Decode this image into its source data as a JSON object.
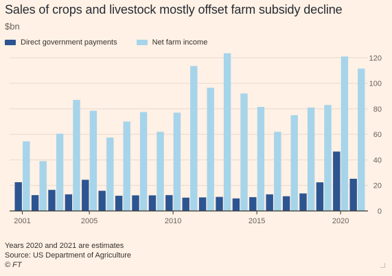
{
  "title": "Sales of crops and livestock mostly offset farm subsidy decline",
  "unit_label": "$bn",
  "colors": {
    "background": "#fff1e5",
    "direct_payments": "#2c5491",
    "net_income": "#a6d4ea",
    "gridline": "#e6d9ce",
    "axis": "#33302e",
    "tick_text": "#66605c"
  },
  "chart_data": {
    "type": "bar",
    "title": "Sales of crops and livestock mostly offset farm subsidy decline",
    "ylabel": "$bn",
    "xlabel": "",
    "ylim": [
      0,
      125
    ],
    "y_ticks": [
      0,
      20,
      40,
      60,
      80,
      100,
      120
    ],
    "x_tick_labels": [
      "2001",
      "2005",
      "2010",
      "2015",
      "2020"
    ],
    "legend_position": "top-left",
    "grid": true,
    "categories": [
      "2001",
      "2002",
      "2003",
      "2004",
      "2005",
      "2006",
      "2007",
      "2008",
      "2009",
      "2010",
      "2011",
      "2012",
      "2013",
      "2014",
      "2015",
      "2016",
      "2017",
      "2018",
      "2019",
      "2020",
      "2021"
    ],
    "series": [
      {
        "name": "Direct government payments",
        "values": [
          22.5,
          12.4,
          16.5,
          13.0,
          24.4,
          15.8,
          11.9,
          12.2,
          12.2,
          12.4,
          10.4,
          10.6,
          11.0,
          9.8,
          10.8,
          13.0,
          11.5,
          13.7,
          22.4,
          46.5,
          25.2
        ]
      },
      {
        "name": "Net farm income",
        "values": [
          54.5,
          39.0,
          60.5,
          87.0,
          78.5,
          57.5,
          70.0,
          77.5,
          62.0,
          77.0,
          113.5,
          96.5,
          123.5,
          92.0,
          81.5,
          62.0,
          75.0,
          81.0,
          83.0,
          121.0,
          111.5
        ]
      }
    ]
  },
  "footnotes": {
    "note": "Years 2020 and 2021 are estimates",
    "source": "Source: US Department of Agriculture",
    "copyright": "© FT"
  }
}
